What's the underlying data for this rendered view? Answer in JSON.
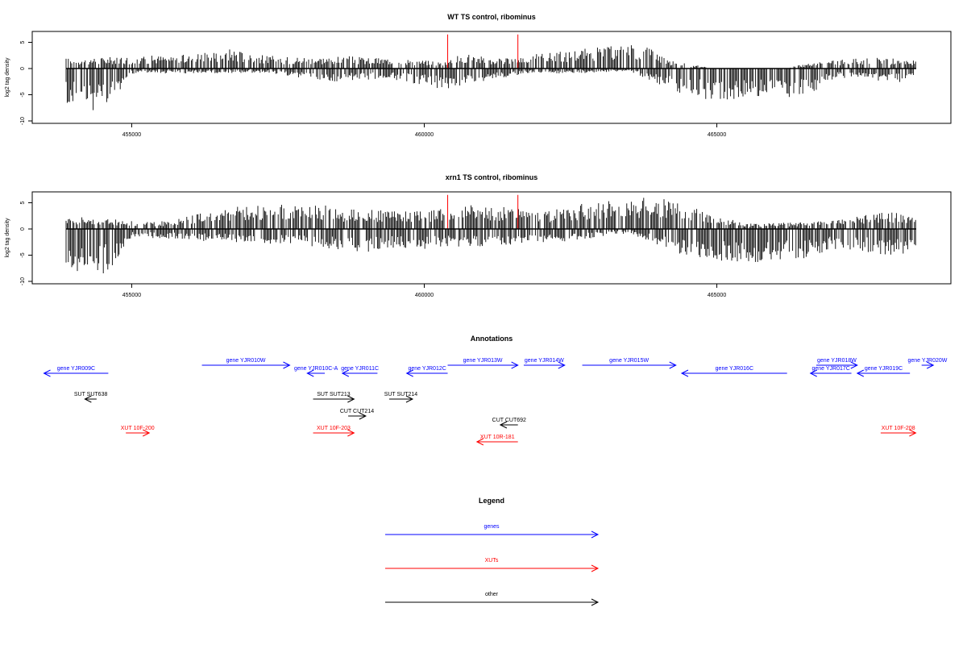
{
  "tracks_title_1": "WT TS control, ribominus",
  "tracks_title_2": "xrn1 TS control, ribominus",
  "chart_data": [
    {
      "type": "bar",
      "title": "WT TS control, ribominus",
      "xlabel": "",
      "ylabel": "log2 tag density",
      "xlim": [
        453300,
        469000
      ],
      "ylim": [
        -10,
        7
      ],
      "x_ticks": [
        455000,
        460000,
        465000
      ],
      "x_tick_labels": [
        "455000",
        "460000",
        "465000"
      ],
      "y_ticks": [
        -10,
        -5,
        0,
        5
      ],
      "y_tick_labels": [
        "-10",
        "-5",
        "0",
        "5"
      ],
      "grid": false,
      "series": [
        {
          "strand": "plus",
          "color": "#000000",
          "x": [
            453400,
            455400,
            456100,
            456400,
            456700,
            457000,
            457300,
            457700,
            458200,
            458700,
            459100,
            459500,
            460300,
            460700,
            461100,
            461500,
            461900,
            462300,
            462700,
            463100,
            463500,
            463900,
            464200,
            465000,
            466000,
            467000,
            467800,
            468400,
            468900
          ],
          "values": [
            1.8,
            2.5,
            2.7,
            3.3,
            3.9,
            3.0,
            2.5,
            2.3,
            2.2,
            2.4,
            2.0,
            2.1,
            1.3,
            3.0,
            2.0,
            2.1,
            3.0,
            3.2,
            3.9,
            4.2,
            4.6,
            4.1,
            1.5,
            0.0,
            0.0,
            1.6,
            2.2,
            1.5,
            1.6
          ]
        },
        {
          "strand": "minus",
          "color": "#000000",
          "x": [
            453400,
            453700,
            454000,
            454400,
            454700,
            455000,
            457300,
            458000,
            458400,
            458900,
            459400,
            459900,
            460300,
            461800,
            462500,
            463500,
            464500,
            465000,
            465500,
            466000,
            466500,
            467000,
            467500,
            468000,
            468600
          ],
          "values": [
            -7.5,
            -6.5,
            -7.0,
            -8.5,
            -6.0,
            -1.0,
            -0.8,
            -2.0,
            -2.5,
            -2.2,
            -2.0,
            -3.0,
            -4.0,
            -0.8,
            -1.0,
            -0.5,
            -5.5,
            -6.5,
            -6.0,
            -5.5,
            -5.8,
            -2.0,
            -1.5,
            -3.0,
            -1.0
          ]
        },
        {
          "strand": "marker",
          "color": "#ff0000",
          "x": [
            460400,
            461600
          ],
          "values": [
            6.5,
            6.5
          ]
        }
      ]
    },
    {
      "type": "bar",
      "title": "xrn1 TS control, ribominus",
      "xlabel": "",
      "ylabel": "log2 tag density",
      "xlim": [
        453300,
        469000
      ],
      "ylim": [
        -10,
        7
      ],
      "x_ticks": [
        455000,
        460000,
        465000
      ],
      "x_tick_labels": [
        "455000",
        "460000",
        "465000"
      ],
      "y_ticks": [
        -10,
        -5,
        0,
        5
      ],
      "y_tick_labels": [
        "-10",
        "-5",
        "0",
        "5"
      ],
      "grid": false,
      "series": [
        {
          "strand": "plus",
          "color": "#000000",
          "x": [
            453400,
            455200,
            455600,
            456200,
            456600,
            457000,
            457400,
            457800,
            458200,
            458700,
            459200,
            459600,
            460300,
            460700,
            461100,
            461500,
            461900,
            462300,
            462700,
            463100,
            463500,
            463900,
            464200,
            465500,
            466500,
            467200,
            467800,
            468300,
            468900
          ],
          "values": [
            3.2,
            1.3,
            1.5,
            3.4,
            4.2,
            4.6,
            4.8,
            4.4,
            4.8,
            3.8,
            3.6,
            3.3,
            3.8,
            4.8,
            4.2,
            4.4,
            3.0,
            3.9,
            4.9,
            5.4,
            5.9,
            6.0,
            5.5,
            1.0,
            1.3,
            2.0,
            3.5,
            2.8,
            4.8
          ]
        },
        {
          "strand": "minus",
          "color": "#000000",
          "x": [
            453400,
            453700,
            454000,
            454400,
            454700,
            455000,
            457000,
            458200,
            458600,
            459000,
            459400,
            459900,
            462500,
            463500,
            464600,
            465000,
            465500,
            466000,
            466500,
            467000,
            467500,
            468000,
            468600
          ],
          "values": [
            -7.0,
            -6.5,
            -8.0,
            -9.5,
            -7.0,
            -1.5,
            -2.8,
            -3.5,
            -4.0,
            -4.5,
            -3.8,
            -4.0,
            -2.3,
            -0.8,
            -5.8,
            -6.5,
            -6.5,
            -6.0,
            -6.0,
            -4.0,
            -4.5,
            -5.0,
            -4.0
          ]
        },
        {
          "strand": "marker",
          "color": "#ff0000",
          "x": [
            460400,
            461600
          ],
          "values": [
            6.5,
            6.5
          ]
        }
      ]
    }
  ],
  "annotations": {
    "title": "Annotations",
    "items": [
      {
        "label": "gene YJR009C",
        "start": 454600,
        "end": 453500,
        "row": 2,
        "kind": "gene"
      },
      {
        "label": "gene YJR010W",
        "start": 456200,
        "end": 457700,
        "row": 1,
        "kind": "gene"
      },
      {
        "label": "gene YJR010C-A",
        "start": 458300,
        "end": 458000,
        "row": 2,
        "kind": "gene"
      },
      {
        "label": "gene YJR011C",
        "start": 459200,
        "end": 458600,
        "row": 2,
        "kind": "gene"
      },
      {
        "label": "gene YJR012C",
        "start": 460400,
        "end": 459700,
        "row": 2,
        "kind": "gene"
      },
      {
        "label": "gene YJR013W",
        "start": 460400,
        "end": 461600,
        "row": 1,
        "kind": "gene"
      },
      {
        "label": "gene YJR014W",
        "start": 461700,
        "end": 462400,
        "row": 1,
        "kind": "gene"
      },
      {
        "label": "gene YJR015W",
        "start": 462700,
        "end": 464300,
        "row": 1,
        "kind": "gene"
      },
      {
        "label": "gene YJR016C",
        "start": 466200,
        "end": 464400,
        "row": 2,
        "kind": "gene"
      },
      {
        "label": "gene YJR017C",
        "start": 467300,
        "end": 466600,
        "row": 2,
        "kind": "gene"
      },
      {
        "label": "gene YJR018W",
        "start": 466700,
        "end": 467400,
        "row": 1,
        "kind": "gene"
      },
      {
        "label": "gene YJR019C",
        "start": 468300,
        "end": 467400,
        "row": 2,
        "kind": "gene"
      },
      {
        "label": "gene YJR020W",
        "start": 468500,
        "end": 468700,
        "row": 1,
        "kind": "gene"
      },
      {
        "label": "SUT SUT638",
        "start": 454400,
        "end": 454200,
        "row": 3,
        "kind": "other"
      },
      {
        "label": "SUT SUT213",
        "start": 458100,
        "end": 458800,
        "row": 3,
        "kind": "other"
      },
      {
        "label": "SUT SUT214",
        "start": 459400,
        "end": 459800,
        "row": 3,
        "kind": "other"
      },
      {
        "label": "CUT CUT214",
        "start": 458700,
        "end": 459000,
        "row": 4,
        "kind": "other"
      },
      {
        "label": "CUT CUT692",
        "start": 461600,
        "end": 461300,
        "row": 5,
        "kind": "other"
      },
      {
        "label": "XUT 10F-200",
        "start": 454900,
        "end": 455300,
        "row": 6,
        "kind": "xut"
      },
      {
        "label": "XUT 10F-203",
        "start": 458100,
        "end": 458800,
        "row": 6,
        "kind": "xut"
      },
      {
        "label": "XUT 10R-181",
        "start": 461600,
        "end": 460900,
        "row": 7,
        "kind": "xut"
      },
      {
        "label": "XUT 10F-208",
        "start": 467800,
        "end": 468400,
        "row": 6,
        "kind": "xut"
      }
    ]
  },
  "legend": {
    "title": "Legend",
    "entries": [
      {
        "label": "genes",
        "color": "#0000ff"
      },
      {
        "label": "XUTs",
        "color": "#ff0000"
      },
      {
        "label": "other",
        "color": "#000000"
      }
    ]
  },
  "colors": {
    "gene": "#0000ff",
    "xut": "#ff0000",
    "other": "#000000",
    "marker": "#ff0000"
  }
}
